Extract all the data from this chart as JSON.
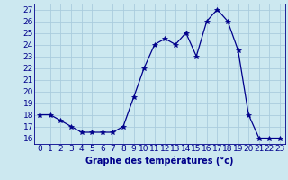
{
  "hours": [
    0,
    1,
    2,
    3,
    4,
    5,
    6,
    7,
    8,
    9,
    10,
    11,
    12,
    13,
    14,
    15,
    16,
    17,
    18,
    19,
    20,
    21,
    22,
    23
  ],
  "temperatures": [
    18,
    18,
    17.5,
    17,
    16.5,
    16.5,
    16.5,
    16.5,
    17,
    19.5,
    22,
    24,
    24.5,
    24,
    25,
    23,
    26,
    27,
    26,
    23.5,
    18,
    16,
    16,
    16
  ],
  "xlabel": "Graphe des températures (°c)",
  "ylabel_ticks": [
    16,
    17,
    18,
    19,
    20,
    21,
    22,
    23,
    24,
    25,
    26,
    27
  ],
  "ylim": [
    15.5,
    27.5
  ],
  "xlim": [
    -0.5,
    23.5
  ],
  "line_color": "#00008b",
  "marker": "*",
  "marker_size": 4,
  "bg_color": "#cce8f0",
  "grid_color": "#aaccdd",
  "label_color": "#00008b",
  "xlabel_fontsize": 7,
  "tick_fontsize": 6.5
}
